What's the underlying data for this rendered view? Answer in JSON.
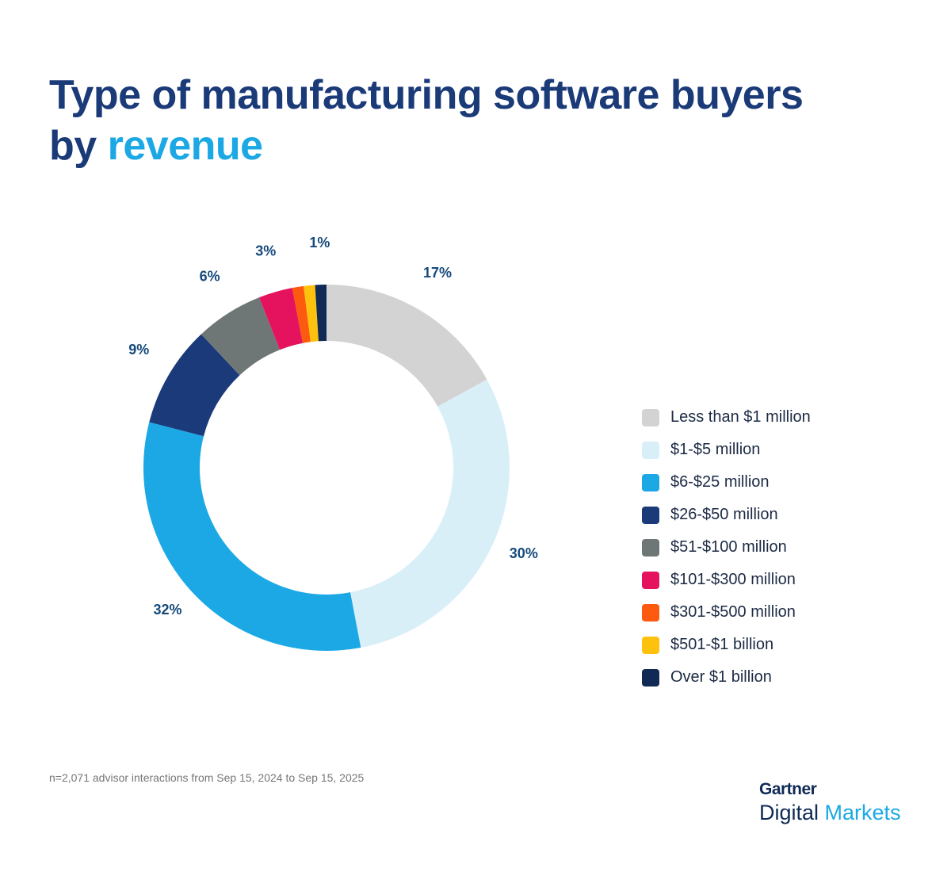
{
  "title": {
    "line1": "Type of manufacturing software buyers",
    "line2_prefix": "by ",
    "line2_highlight": "revenue"
  },
  "chart_data": {
    "type": "pie",
    "donut": true,
    "categories": [
      "Less than $1 million",
      "$1-$5 million",
      "$6-$25 million",
      "$26-$50 million",
      "$51-$100 million",
      "$101-$300 million",
      "$301-$500 million",
      "$501-$1 billion",
      "Over $1 billion"
    ],
    "values": [
      17,
      30,
      32,
      9,
      6,
      3,
      1,
      1,
      1
    ],
    "data_labels": [
      "17%",
      "30%",
      "32%",
      "9%",
      "6%",
      "3%",
      null,
      null,
      "1%"
    ],
    "colors": [
      "#d3d3d3",
      "#d9eff8",
      "#1ba8e5",
      "#1a3a7a",
      "#6f7776",
      "#e5135e",
      "#fc5a0e",
      "#fec10d",
      "#102a55"
    ],
    "start": "top",
    "direction": "clockwise",
    "legend_position": "right"
  },
  "footnote": "n=2,071 advisor interactions from Sep 15, 2024 to Sep 15, 2025",
  "logo": {
    "line1": "Gartner",
    "line2a": "Digital",
    "line2b": "Markets"
  }
}
